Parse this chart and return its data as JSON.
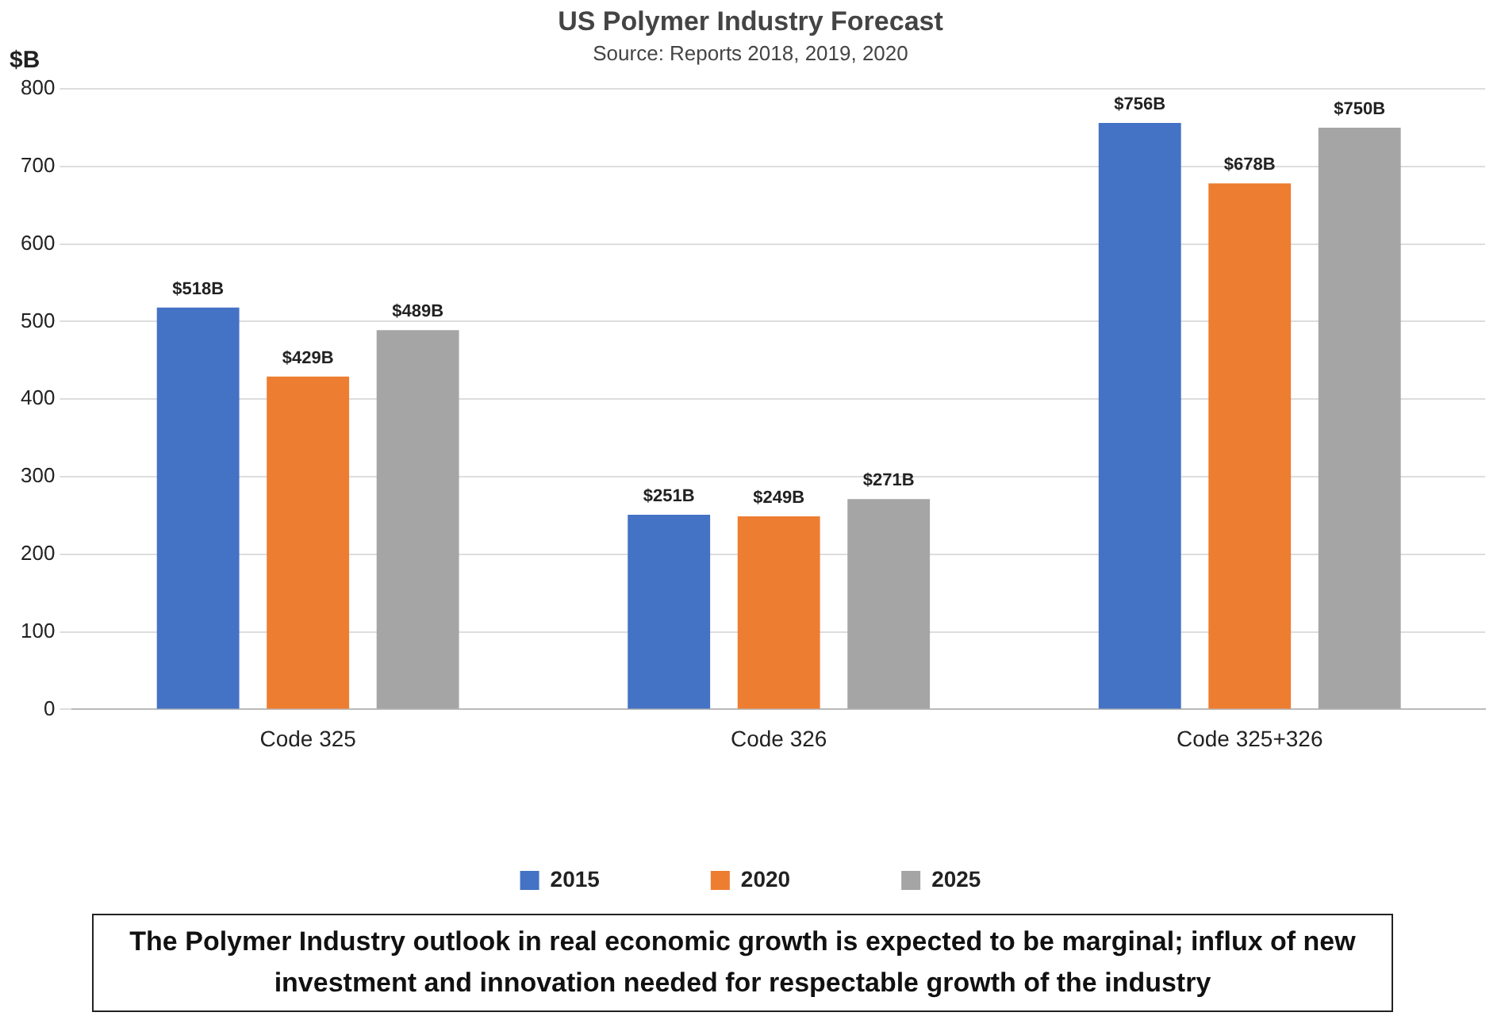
{
  "chart_data": {
    "type": "bar",
    "title": "US Polymer Industry Forecast",
    "subtitle": "Source: Reports 2018, 2019, 2020",
    "ylabel": "$B",
    "categories": [
      "Code 325",
      "Code 326",
      "Code 325+326"
    ],
    "series": [
      {
        "name": "2015",
        "color": "#4472c4",
        "values": [
          518,
          251,
          756
        ],
        "value_labels": [
          "$518B",
          "$251B",
          "$756B"
        ]
      },
      {
        "name": "2020",
        "color": "#ed7d31",
        "values": [
          429,
          249,
          678
        ],
        "value_labels": [
          "$429B",
          "$249B",
          "$678B"
        ]
      },
      {
        "name": "2025",
        "color": "#a5a5a5",
        "values": [
          489,
          271,
          750
        ],
        "value_labels": [
          "$489B",
          "$271B",
          "$750B"
        ]
      }
    ],
    "ylim": [
      0,
      800
    ],
    "yticks": [
      0,
      100,
      200,
      300,
      400,
      500,
      600,
      700,
      800
    ],
    "grid": "y",
    "legend": "bottom",
    "annotations": [
      "The Polymer Industry outlook in real economic growth is expected to be marginal; influx of new investment and innovation needed for respectable growth of the industry"
    ]
  }
}
